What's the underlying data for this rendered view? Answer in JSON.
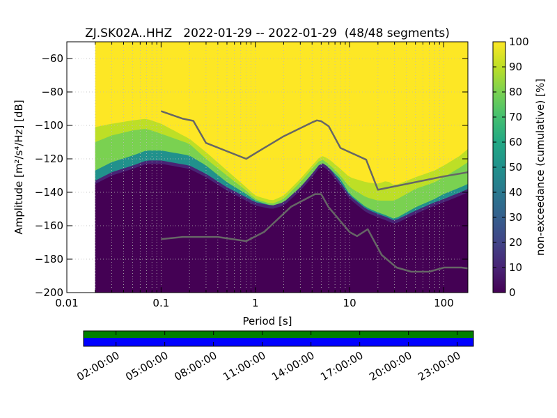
{
  "chart_data": {
    "type": "heatmap",
    "title": "ZJ.SK02A..HHZ   2022-01-29 -- 2022-01-29  (48/48 segments)",
    "xlabel": "Period [s]",
    "ylabel": "Amplitude [m²/s⁴/Hz] [dB]",
    "x_scale": "log",
    "xlim": [
      0.01,
      180
    ],
    "ylim": [
      -200,
      -50
    ],
    "x_ticks": [
      0.01,
      0.1,
      1,
      10,
      100
    ],
    "x_tick_labels": [
      "0.01",
      "0.1",
      "1",
      "10",
      "100"
    ],
    "y_ticks": [
      -60,
      -80,
      -100,
      -120,
      -140,
      -160,
      -180,
      -200
    ],
    "grid": true,
    "colorbar": {
      "label": "non-exceedance (cumulative) [%]",
      "ticks": [
        0,
        10,
        20,
        30,
        40,
        50,
        60,
        70,
        80,
        90,
        100
      ],
      "colormap": "viridis"
    },
    "data_start_period": 0.02,
    "percentile_bands": {
      "period": [
        0.02,
        0.03,
        0.05,
        0.07,
        0.1,
        0.2,
        0.3,
        0.5,
        0.8,
        1.0,
        1.5,
        2.0,
        3.0,
        4.0,
        5.0,
        6.0,
        8.0,
        10,
        15,
        20,
        25,
        30,
        50,
        80,
        100,
        150,
        180
      ],
      "p1": [
        -133,
        -128,
        -124,
        -121,
        -121,
        -124,
        -129,
        -137,
        -143,
        -146,
        -148,
        -146,
        -137,
        -129,
        -122,
        -125,
        -134,
        -142,
        -150,
        -153,
        -155,
        -157,
        -151,
        -146,
        -144,
        -140,
        -138
      ],
      "p50": [
        -127,
        -122,
        -118,
        -115,
        -115,
        -118,
        -124,
        -134,
        -141,
        -145,
        -148,
        -146,
        -137,
        -129,
        -122,
        -125,
        -132,
        -141,
        -149,
        -152,
        -154,
        -156,
        -149,
        -144,
        -141,
        -137,
        -135
      ],
      "p90": [
        -110,
        -106,
        -103,
        -102,
        -105,
        -111,
        -120,
        -130,
        -139,
        -144,
        -147,
        -144,
        -134,
        -126,
        -120,
        -123,
        -130,
        -137,
        -143,
        -145,
        -145,
        -145,
        -138,
        -134,
        -131,
        -125,
        -122
      ],
      "p100": [
        -101,
        -99,
        -97,
        -96,
        -99,
        -108,
        -116,
        -127,
        -137,
        -142,
        -145,
        -142,
        -132,
        -124,
        -118,
        -120,
        -126,
        -131,
        -134,
        -135,
        -133,
        -136,
        -131,
        -127,
        -124,
        -118,
        -114
      ]
    },
    "noise_models": [
      {
        "period": [
          0.1,
          0.17,
          0.22,
          0.3,
          0.8,
          1.2,
          2.0,
          4.0,
          4.5,
          5.0,
          6.0,
          8.0,
          15.0,
          20.0,
          100.0,
          180.0
        ],
        "values": [
          -91.5,
          -96.0,
          -97.3,
          -110.5,
          -120.0,
          -114.0,
          -106.5,
          -98.2,
          -97.0,
          -97.5,
          -100.5,
          -113.5,
          -120.5,
          -138.5,
          -130.5,
          -128.0
        ]
      },
      {
        "period": [
          0.1,
          0.17,
          0.4,
          0.8,
          1.24,
          2.4,
          4.3,
          5.0,
          6.0,
          10.0,
          12.0,
          15.6,
          21.9,
          31.6,
          45.0,
          70.0,
          101.0,
          154.0,
          180.0
        ],
        "values": [
          -168.0,
          -166.7,
          -166.7,
          -169.2,
          -163.7,
          -148.6,
          -141.1,
          -141.1,
          -149.0,
          -163.8,
          -166.2,
          -162.1,
          -177.5,
          -185.0,
          -187.5,
          -187.5,
          -185.0,
          -185.0,
          -185.5
        ]
      }
    ],
    "segments_timeline": {
      "tick_labels": [
        "02:00:00",
        "05:00:00",
        "08:00:00",
        "11:00:00",
        "14:00:00",
        "17:00:00",
        "20:00:00",
        "23:00:00"
      ],
      "tick_hours": [
        2,
        5,
        8,
        11,
        14,
        17,
        20,
        23
      ],
      "range_hours": [
        0,
        24
      ],
      "segments": 48,
      "top_color": "#008000",
      "bottom_color": "#0000ff"
    }
  }
}
